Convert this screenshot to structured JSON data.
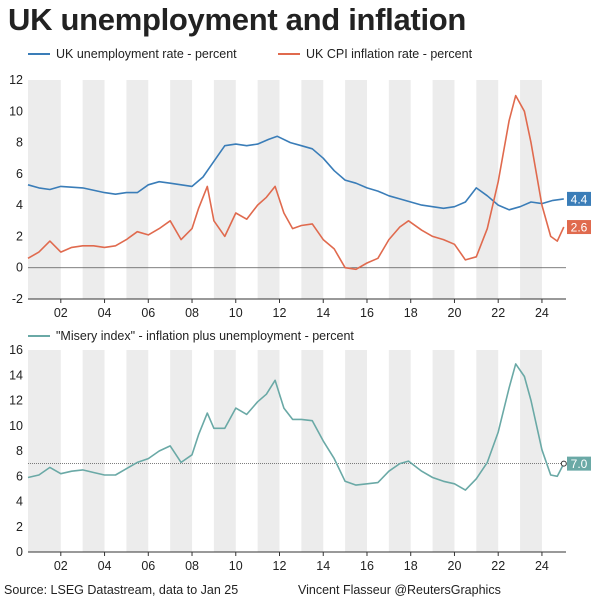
{
  "title": "UK unemployment and inflation",
  "footer": {
    "source": "Source: LSEG Datastream, data to Jan 25",
    "credit": "Vincent Flasseur @ReutersGraphics"
  },
  "colors": {
    "unemployment": "#3a7db8",
    "cpi": "#e06a4e",
    "misery": "#6aa9a6",
    "band": "#ececec"
  },
  "chart_data": [
    {
      "type": "line",
      "xlim": [
        2000.5,
        2025.1
      ],
      "ylim": [
        -2,
        12
      ],
      "yticks": [
        -2,
        0,
        2,
        4,
        6,
        8,
        10,
        12
      ],
      "xticks": [
        2002,
        2004,
        2006,
        2008,
        2010,
        2012,
        2014,
        2016,
        2018,
        2020,
        2022,
        2024
      ],
      "xtick_labels": [
        "02",
        "04",
        "06",
        "08",
        "10",
        "12",
        "14",
        "16",
        "18",
        "20",
        "22",
        "24"
      ],
      "shaded_bands": [
        [
          2000.5,
          2002
        ],
        [
          2003,
          2004
        ],
        [
          2005,
          2006
        ],
        [
          2007,
          2008
        ],
        [
          2009,
          2010
        ],
        [
          2011,
          2012
        ],
        [
          2013,
          2014
        ],
        [
          2015,
          2016
        ],
        [
          2017,
          2018
        ],
        [
          2019,
          2020
        ],
        [
          2021,
          2022
        ],
        [
          2023,
          2024
        ]
      ],
      "reference_line": 0,
      "series": [
        {
          "name": "UK unemployment rate - percent",
          "end_label": "4.4",
          "x": [
            2000.5,
            2001.0,
            2001.5,
            2002.0,
            2003.0,
            2004.0,
            2004.5,
            2005.0,
            2005.5,
            2006.0,
            2006.5,
            2007.0,
            2007.5,
            2008.0,
            2008.5,
            2009.0,
            2009.5,
            2010.0,
            2010.5,
            2011.0,
            2011.5,
            2011.9,
            2012.5,
            2013.0,
            2013.5,
            2014.0,
            2014.5,
            2015.0,
            2015.5,
            2016.0,
            2016.5,
            2017.0,
            2017.5,
            2018.0,
            2018.5,
            2019.0,
            2019.5,
            2020.0,
            2020.5,
            2021.0,
            2021.5,
            2022.0,
            2022.5,
            2023.0,
            2023.5,
            2024.0,
            2024.5,
            2025.0
          ],
          "y": [
            5.3,
            5.1,
            5.0,
            5.2,
            5.1,
            4.8,
            4.7,
            4.8,
            4.8,
            5.3,
            5.5,
            5.4,
            5.3,
            5.2,
            5.8,
            6.8,
            7.8,
            7.9,
            7.8,
            7.9,
            8.2,
            8.4,
            8.0,
            7.8,
            7.6,
            7.0,
            6.2,
            5.6,
            5.4,
            5.1,
            4.9,
            4.6,
            4.4,
            4.2,
            4.0,
            3.9,
            3.8,
            3.9,
            4.2,
            5.1,
            4.6,
            4.0,
            3.7,
            3.9,
            4.2,
            4.1,
            4.3,
            4.4
          ]
        },
        {
          "name": "UK CPI inflation rate - percent",
          "end_label": "2.6",
          "x": [
            2000.5,
            2001.0,
            2001.5,
            2002.0,
            2002.5,
            2003.0,
            2003.5,
            2004.0,
            2004.5,
            2005.0,
            2005.5,
            2006.0,
            2006.5,
            2007.0,
            2007.5,
            2008.0,
            2008.3,
            2008.7,
            2009.0,
            2009.5,
            2010.0,
            2010.5,
            2011.0,
            2011.4,
            2011.8,
            2012.2,
            2012.6,
            2013.0,
            2013.5,
            2014.0,
            2014.5,
            2015.0,
            2015.5,
            2016.0,
            2016.5,
            2017.0,
            2017.5,
            2017.9,
            2018.5,
            2019.0,
            2019.5,
            2020.0,
            2020.5,
            2021.0,
            2021.5,
            2022.0,
            2022.5,
            2022.8,
            2023.2,
            2023.5,
            2024.0,
            2024.4,
            2024.7,
            2025.0
          ],
          "y": [
            0.6,
            1.0,
            1.7,
            1.0,
            1.3,
            1.4,
            1.4,
            1.3,
            1.4,
            1.8,
            2.3,
            2.1,
            2.5,
            3.0,
            1.8,
            2.5,
            3.8,
            5.2,
            3.0,
            2.0,
            3.5,
            3.1,
            4.0,
            4.5,
            5.2,
            3.5,
            2.5,
            2.7,
            2.8,
            1.8,
            1.2,
            0.0,
            -0.1,
            0.3,
            0.6,
            1.8,
            2.6,
            3.0,
            2.4,
            2.0,
            1.8,
            1.5,
            0.5,
            0.7,
            2.5,
            5.5,
            9.4,
            11.0,
            10.0,
            8.0,
            4.0,
            2.0,
            1.7,
            2.6
          ]
        }
      ]
    },
    {
      "type": "line",
      "xlim": [
        2000.5,
        2025.1
      ],
      "ylim": [
        0,
        16
      ],
      "yticks": [
        0,
        2,
        4,
        6,
        8,
        10,
        12,
        14,
        16
      ],
      "xticks": [
        2002,
        2004,
        2006,
        2008,
        2010,
        2012,
        2014,
        2016,
        2018,
        2020,
        2022,
        2024
      ],
      "xtick_labels": [
        "02",
        "04",
        "06",
        "08",
        "10",
        "12",
        "14",
        "16",
        "18",
        "20",
        "22",
        "24"
      ],
      "shaded_bands": [
        [
          2000.5,
          2002
        ],
        [
          2003,
          2004
        ],
        [
          2005,
          2006
        ],
        [
          2007,
          2008
        ],
        [
          2009,
          2010
        ],
        [
          2011,
          2012
        ],
        [
          2013,
          2014
        ],
        [
          2015,
          2016
        ],
        [
          2017,
          2018
        ],
        [
          2019,
          2020
        ],
        [
          2021,
          2022
        ],
        [
          2023,
          2024
        ]
      ],
      "reference_line": 7.0,
      "series": [
        {
          "name": "\"Misery index\" - inflation plus unemployment - percent",
          "end_label": "7.0",
          "x": [
            2000.5,
            2001.0,
            2001.5,
            2002.0,
            2002.5,
            2003.0,
            2003.5,
            2004.0,
            2004.5,
            2005.0,
            2005.5,
            2006.0,
            2006.5,
            2007.0,
            2007.5,
            2008.0,
            2008.3,
            2008.7,
            2009.0,
            2009.5,
            2010.0,
            2010.5,
            2011.0,
            2011.4,
            2011.8,
            2012.2,
            2012.6,
            2013.0,
            2013.5,
            2014.0,
            2014.5,
            2015.0,
            2015.5,
            2016.0,
            2016.5,
            2017.0,
            2017.5,
            2017.9,
            2018.5,
            2019.0,
            2019.5,
            2020.0,
            2020.5,
            2021.0,
            2021.5,
            2022.0,
            2022.5,
            2022.8,
            2023.2,
            2023.5,
            2024.0,
            2024.4,
            2024.7,
            2025.0
          ],
          "y": [
            5.9,
            6.1,
            6.7,
            6.2,
            6.4,
            6.5,
            6.3,
            6.1,
            6.1,
            6.6,
            7.1,
            7.4,
            8.0,
            8.4,
            7.1,
            7.7,
            9.3,
            11.0,
            9.8,
            9.8,
            11.4,
            10.9,
            11.9,
            12.5,
            13.6,
            11.4,
            10.5,
            10.5,
            10.4,
            8.8,
            7.4,
            5.6,
            5.3,
            5.4,
            5.5,
            6.4,
            7.0,
            7.2,
            6.4,
            5.9,
            5.6,
            5.4,
            4.9,
            5.8,
            7.1,
            9.5,
            13.0,
            14.9,
            13.9,
            12.0,
            8.1,
            6.1,
            6.0,
            7.0
          ]
        }
      ]
    }
  ]
}
